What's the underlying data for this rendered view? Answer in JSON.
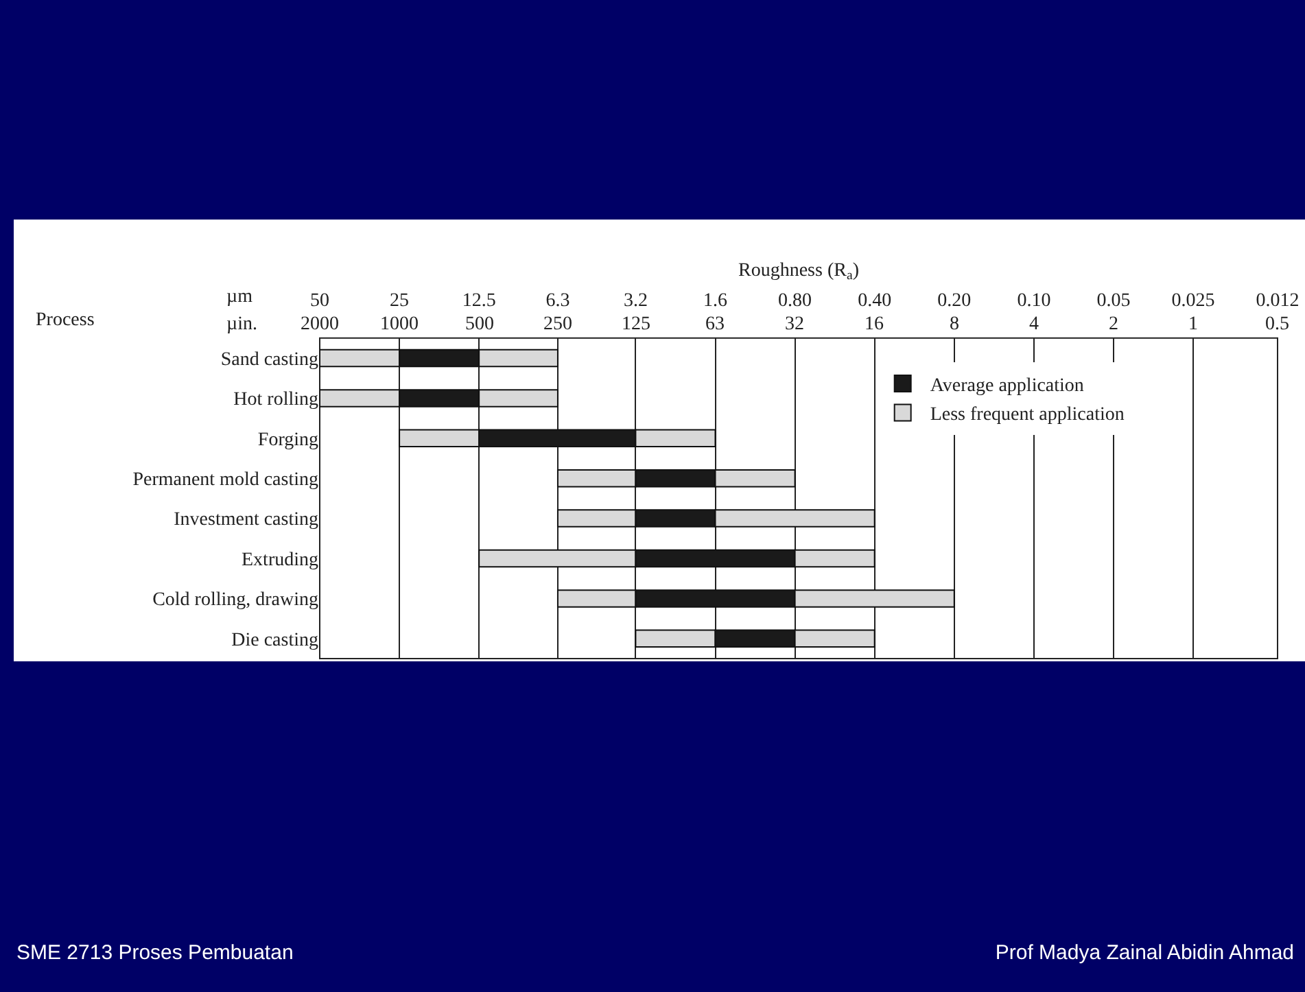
{
  "chart_data": {
    "type": "bar",
    "orientation": "horizontal",
    "log": "x",
    "grid": "x",
    "legend": "top right",
    "xlabel": "Roughness (R$_{a}$)",
    "categories": [
      "Sand casting",
      "Hot rolling",
      "Forging",
      "Permanent mold casting",
      "Investment casting",
      "Extruding",
      "Cold rolling, drawing",
      "Die casting"
    ],
    "series": [
      {
        "name": "Less frequent application",
        "color": "#d9d9d9",
        "base": [
          25,
          25,
          12.5,
          3.2,
          3.2,
          3.2,
          3.2,
          1.6
        ],
        "values": [
          25,
          25,
          12.5,
          3.1,
          3.1,
          9.3,
          3.1,
          1.6
        ]
      },
      {
        "name": "Average application",
        "color": "#1a1a1a",
        "base": [
          12.5,
          12.5,
          3.2,
          1.6,
          1.6,
          0.8,
          0.8,
          0.8
        ],
        "values": [
          12.5,
          12.5,
          9.3,
          1.6,
          1.6,
          2.4,
          2.4,
          0.8
        ]
      },
      {
        "color": "#d9d9d9",
        "base": [
          6.3,
          6.3,
          1.6,
          0.8,
          0.4,
          0.4,
          0.2,
          0.4
        ],
        "values": [
          6.2,
          6.2,
          1.6,
          0.8,
          1.2,
          0.4,
          0.6,
          0.4
        ]
      }
    ],
    "xlim": [
      50,
      0.012
    ],
    "xticks": [
      50,
      25,
      12.5,
      6.3,
      3.2,
      1.6,
      {
        "value": 0.8,
        "label": "0.80"
      },
      {
        "value": 0.4,
        "label": "0.40"
      },
      {
        "value": 0.2,
        "label": "0.20"
      },
      {
        "value": 0.1,
        "label": "0.10"
      },
      0.05,
      0.025,
      0.012
    ],
    "annotations": [
      "µm",
      "µin.",
      "2000",
      "1000",
      "500",
      "250",
      "125",
      "63",
      "32",
      "16",
      "8",
      "4",
      "2",
      "1",
      "0.5",
      "Process",
      "SME 2713 Proses Pembuatan",
      "Prof Madya Zainal Abidin Ahmad"
    ]
  }
}
